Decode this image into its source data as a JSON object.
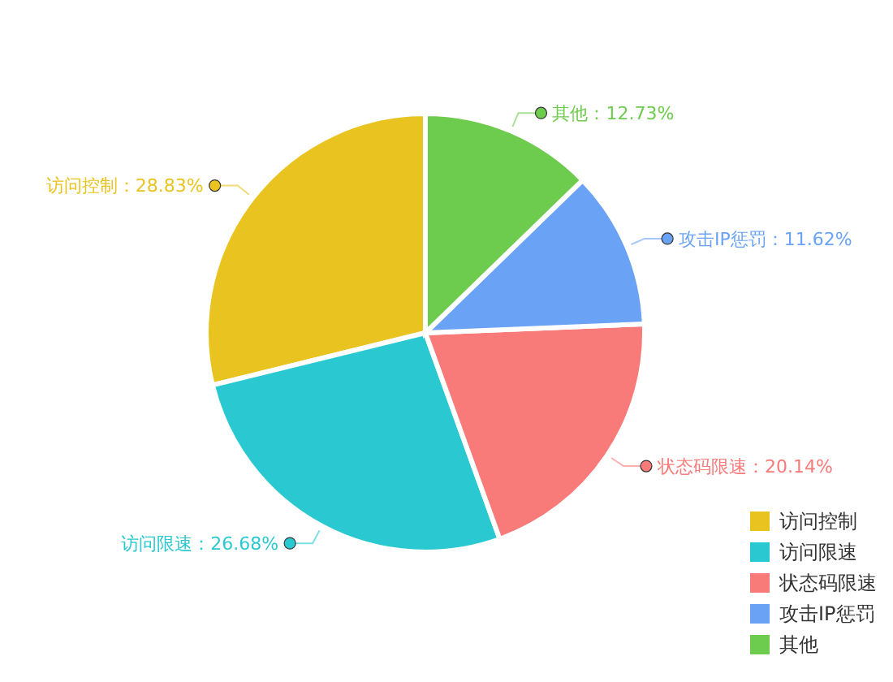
{
  "chart_data": {
    "type": "pie",
    "categories": [
      "访问控制",
      "访问限速",
      "状态码限速",
      "攻击IP惩罚",
      "其他"
    ],
    "values": [
      28.83,
      26.68,
      20.14,
      11.62,
      12.73
    ],
    "colors": [
      "#e9c31f",
      "#2ac9d1",
      "#f87a79",
      "#6aa2f6",
      "#6dcb4d"
    ],
    "value_labels": [
      "访问控制：28.83%",
      "访问限速：26.68%",
      "状态码限速：20.14%",
      "攻击IP惩罚：11.62%",
      "其他：12.73%"
    ],
    "legend": "bottom right"
  }
}
